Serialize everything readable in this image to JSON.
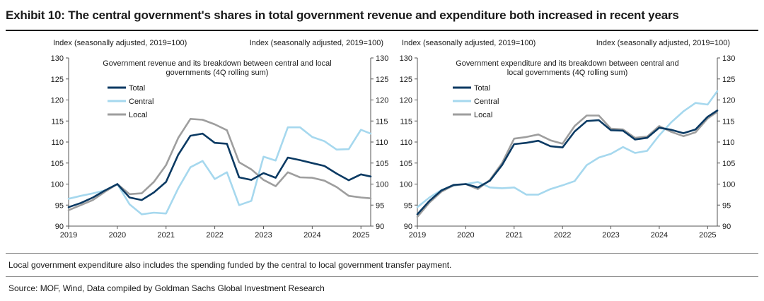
{
  "title": "Exhibit 10: The central government's shares in total government revenue and expenditure both increased in recent years",
  "note": "Local government expenditure also includes the spending funded by the central to local government transfer payment.",
  "source": "Source: MOF, Wind, Data compiled by Goldman Sachs Global Investment Research",
  "colors": {
    "Total": "#0b3a63",
    "Central": "#a6d8ee",
    "Local": "#9e9e9e"
  },
  "chart_data": [
    {
      "type": "line",
      "title": "Government revenue and its breakdown between central and local governments (4Q rolling sum)",
      "ylabel_left": "Index (seasonally adjusted, 2019=100)",
      "ylabel_right": "Index (seasonally adjusted, 2019=100)",
      "ylim": [
        90,
        130
      ],
      "yticks": [
        90,
        95,
        100,
        105,
        110,
        115,
        120,
        125,
        130
      ],
      "xlim": [
        2019,
        2025.2
      ],
      "xticks": [
        "2019",
        "2020",
        "2021",
        "2022",
        "2023",
        "2024",
        "2025"
      ],
      "legend_position": "upper-left",
      "grid": false,
      "x": [
        2019.0,
        2019.25,
        2019.5,
        2019.75,
        2020.0,
        2020.25,
        2020.5,
        2020.75,
        2021.0,
        2021.25,
        2021.5,
        2021.75,
        2022.0,
        2022.25,
        2022.5,
        2022.75,
        2023.0,
        2023.25,
        2023.5,
        2023.75,
        2024.0,
        2024.25,
        2024.5,
        2024.75,
        2025.0,
        2025.2
      ],
      "series": [
        {
          "name": "Total",
          "values": [
            94.5,
            95.5,
            96.8,
            98.5,
            100.0,
            96.8,
            96.2,
            98.0,
            100.5,
            107.0,
            111.5,
            112.0,
            109.8,
            109.6,
            101.6,
            101.0,
            102.6,
            101.5,
            106.3,
            105.7,
            105.0,
            104.3,
            102.5,
            100.9,
            102.3,
            101.8
          ]
        },
        {
          "name": "Central",
          "values": [
            96.5,
            97.2,
            97.8,
            98.5,
            100.0,
            95.2,
            92.8,
            93.2,
            93.0,
            99.0,
            104.0,
            105.5,
            101.2,
            102.8,
            95.0,
            96.0,
            106.5,
            105.6,
            113.5,
            113.5,
            111.2,
            110.2,
            108.2,
            108.3,
            112.9,
            112.0
          ]
        },
        {
          "name": "Local",
          "values": [
            93.8,
            95.0,
            96.2,
            98.2,
            100.0,
            97.6,
            97.8,
            100.5,
            104.5,
            111.0,
            115.5,
            115.3,
            114.2,
            112.8,
            105.2,
            103.5,
            101.0,
            99.5,
            102.8,
            101.6,
            101.5,
            100.8,
            99.3,
            97.2,
            96.8,
            96.6
          ]
        }
      ]
    },
    {
      "type": "line",
      "title": "Government expenditure and its breakdown between central and local governments (4Q rolling sum)",
      "ylabel_left": "Index (seasonally adjusted, 2019=100)",
      "ylabel_right": "Index (seasonally adjusted, 2019=100)",
      "ylim": [
        90,
        130
      ],
      "yticks": [
        90,
        95,
        100,
        105,
        110,
        115,
        120,
        125,
        130
      ],
      "xlim": [
        2019,
        2025.2
      ],
      "xticks": [
        "2019",
        "2020",
        "2021",
        "2022",
        "2023",
        "2024",
        "2025"
      ],
      "legend_position": "upper-left",
      "grid": false,
      "x": [
        2019.0,
        2019.25,
        2019.5,
        2019.75,
        2020.0,
        2020.25,
        2020.5,
        2020.75,
        2021.0,
        2021.25,
        2021.5,
        2021.75,
        2022.0,
        2022.25,
        2022.5,
        2022.75,
        2023.0,
        2023.25,
        2023.5,
        2023.75,
        2024.0,
        2024.25,
        2024.5,
        2024.75,
        2025.0,
        2025.2
      ],
      "series": [
        {
          "name": "Total",
          "values": [
            92.8,
            96.0,
            98.5,
            99.8,
            100.0,
            99.2,
            100.8,
            104.5,
            109.5,
            109.8,
            110.3,
            109.0,
            108.7,
            112.5,
            115.0,
            115.2,
            112.8,
            112.7,
            110.6,
            111.0,
            113.4,
            112.9,
            112.1,
            113.0,
            116.0,
            117.5
          ]
        },
        {
          "name": "Central",
          "values": [
            94.5,
            96.8,
            98.6,
            99.6,
            100.0,
            100.5,
            99.2,
            99.0,
            99.2,
            97.5,
            97.5,
            98.8,
            99.7,
            100.7,
            104.5,
            106.3,
            107.2,
            108.8,
            107.4,
            107.9,
            111.6,
            114.7,
            117.3,
            119.3,
            118.9,
            122.1
          ]
        },
        {
          "name": "Local",
          "values": [
            92.2,
            95.6,
            98.2,
            99.7,
            100.0,
            98.8,
            101.0,
            105.0,
            110.8,
            111.2,
            111.8,
            110.4,
            109.6,
            113.8,
            116.3,
            116.3,
            113.2,
            113.0,
            111.0,
            111.3,
            113.8,
            112.4,
            111.4,
            112.3,
            115.6,
            117.2
          ]
        }
      ]
    }
  ]
}
